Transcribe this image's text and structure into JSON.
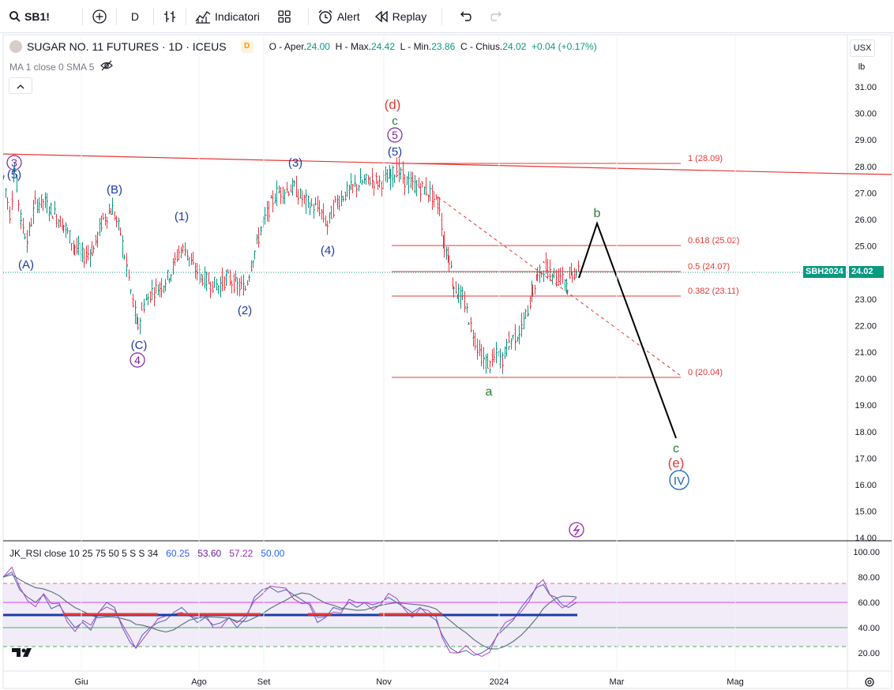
{
  "toolbar": {
    "symbol": "SB1!",
    "interval": "D",
    "indicators_label": "Indicatori",
    "alert_label": "Alert",
    "replay_label": "Replay"
  },
  "legend": {
    "title": "SUGAR NO. 11 FUTURES · 1D · ICEUS",
    "badge": "D",
    "open_label": "O - Aper.",
    "open": "24.00",
    "high_label": "H - Max.",
    "high": "24.42",
    "low_label": "L - Min.",
    "low": "23.86",
    "close_label": "C - Chius.",
    "close": "24.02",
    "change": "+0.04 (+0.17%)"
  },
  "ma_legend": "MA 1 close 0 SMA 5",
  "rsi_legend": {
    "label": "JK_RSI close 10 25 75 50 5 S S 34",
    "v1": "60.25",
    "v2": "53.60",
    "v3": "57.22",
    "v4": "50.00"
  },
  "axis": {
    "currency": "USX",
    "unit": "lb",
    "price_ticks": [
      "31.00",
      "30.00",
      "29.00",
      "28.00",
      "27.00",
      "26.00",
      "25.00",
      "24.00",
      "23.00",
      "22.00",
      "21.00",
      "20.00",
      "19.00",
      "18.00",
      "17.00",
      "16.00",
      "15.00",
      "14.00"
    ],
    "rsi_ticks": [
      "100.00",
      "80.00",
      "60.00",
      "40.00",
      "20.00"
    ],
    "time_labels": [
      "Giu",
      "Ago",
      "Set",
      "Nov",
      "2024",
      "Mar",
      "Mag"
    ]
  },
  "price_tag": {
    "symbol": "SBH2024",
    "value": "24.02"
  },
  "fib_levels": [
    {
      "label": "1 (28.09)"
    },
    {
      "label": "0.618 (25.02)"
    },
    {
      "label": "0.5 (24.07)"
    },
    {
      "label": "0.382 (23.11)"
    },
    {
      "label": "0 (20.04)"
    }
  ],
  "wave_labels": {
    "w3_circle": "3",
    "w5_paren_top": "(5)",
    "wA": "(A)",
    "wB": "(B)",
    "wC": "(C)",
    "w4_circle": "4",
    "w1": "(1)",
    "w2": "(2)",
    "w3": "(3)",
    "w4": "(4)",
    "wd": "(d)",
    "wc_small": "c",
    "w5_circle": "5",
    "w5_paren": "(5)",
    "wa": "a",
    "wb": "b",
    "wc_final": "c",
    "we": "(e)",
    "wIV": "IV"
  },
  "colors": {
    "up": "#089981",
    "down": "#f23645",
    "wave_blue": "#1e3aa8",
    "wave_red": "#e53935",
    "wave_green": "#2e7d32",
    "wave_purple": "#7b1fa2",
    "rsi_band": "#ede7f6"
  }
}
